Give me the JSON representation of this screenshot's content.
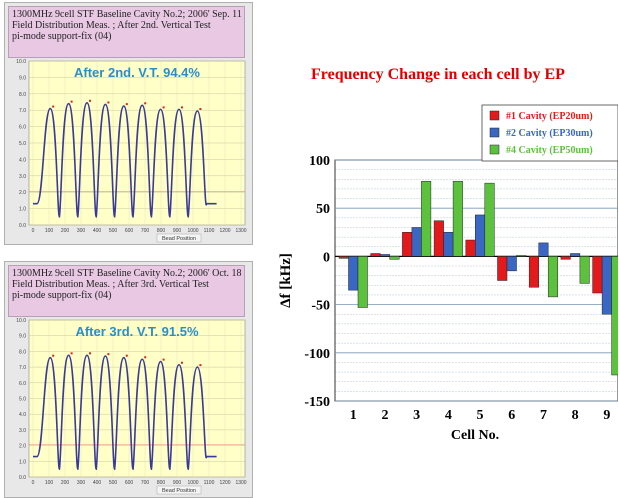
{
  "panels": [
    {
      "header": [
        "1300MHz 9cell STF Baseline Cavity No.2;  2006' Sep. 11",
        "Field Distribution Meas. ; After 2nd. Vertical Test",
        "pi-mode support-fix (04)"
      ],
      "annotation": "After 2nd. V.T. 94.4%",
      "xlabel": "Bead Position",
      "x_ticks": [
        "0",
        "100",
        "200",
        "300",
        "400",
        "500",
        "600",
        "700",
        "800",
        "900",
        "1000",
        "1100",
        "1200",
        "1300"
      ],
      "y_ticks": [
        "0.0",
        "1.0",
        "2.0",
        "3.0",
        "4.0",
        "5.0",
        "6.0",
        "7.0",
        "8.0",
        "9.0",
        "10.0"
      ],
      "cell_peaks": [
        7.1,
        7.4,
        7.45,
        7.35,
        7.25,
        7.3,
        7.05,
        7.05,
        6.95
      ]
    },
    {
      "header": [
        "1300MHz 9cell STF Baseline Cavity No.2;  2006' Oct. 18",
        "Field Distribution Meas. ; After 3rd. Vertical Test",
        "pi-mode support-fix (04)"
      ],
      "annotation": "After 3rd. V.T. 91.5%",
      "xlabel": "Bead Position",
      "x_ticks": [
        "0",
        "100",
        "200",
        "300",
        "400",
        "500",
        "600",
        "700",
        "800",
        "900",
        "1000",
        "1100",
        "1200",
        "1300"
      ],
      "y_ticks": [
        "0.0",
        "1.0",
        "2.0",
        "3.0",
        "4.0",
        "5.0",
        "6.0",
        "7.0",
        "8.0",
        "9.0",
        "10.0"
      ],
      "cell_peaks": [
        7.6,
        7.75,
        7.75,
        7.7,
        7.6,
        7.5,
        7.35,
        7.15,
        7.0
      ]
    }
  ],
  "chart_data": {
    "type": "bar",
    "title": "Frequency Change in each cell by EP",
    "xlabel": "Cell No.",
    "ylabel": "Δf [kHz]",
    "ylim": [
      -150,
      100
    ],
    "y_ticks": [
      "100",
      "50",
      "0",
      "-50",
      "-100",
      "-150"
    ],
    "grid": true,
    "legend_position": "top-right",
    "categories": [
      "1",
      "2",
      "3",
      "4",
      "5",
      "6",
      "7",
      "8",
      "9"
    ],
    "series": [
      {
        "name": "#1 Cavity (EP20um)",
        "color": "#e31a1c",
        "values": [
          -2,
          3,
          25,
          37,
          17,
          -25,
          -32,
          -3,
          -38
        ]
      },
      {
        "name": "#2 Cavity (EP30um)",
        "color": "#3a66c4",
        "values": [
          -35,
          2,
          30,
          25,
          43,
          -15,
          14,
          3,
          -60
        ]
      },
      {
        "name": "#4 Cavity (EP50um)",
        "color": "#5cc23d",
        "values": [
          -53,
          -3,
          78,
          78,
          76,
          1,
          -42,
          -28,
          -123
        ]
      }
    ]
  },
  "colors": {
    "plot_bg": "#ffffc8",
    "field_line": "#3a3a9a",
    "peak_marker": "#dd2222",
    "title_color": "#e00000",
    "annotation_color": "#2a8ec8"
  }
}
